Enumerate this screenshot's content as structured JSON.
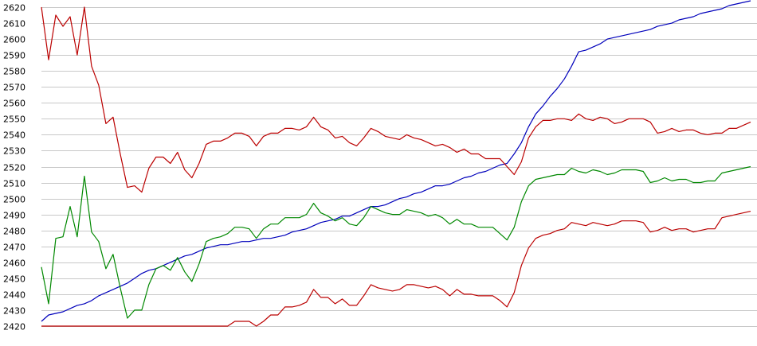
{
  "chart_data": {
    "type": "line",
    "title": "",
    "xlabel": "",
    "ylabel": "",
    "ylim": [
      2420,
      2620
    ],
    "yticks": [
      2620,
      2610,
      2600,
      2590,
      2580,
      2570,
      2560,
      2550,
      2540,
      2530,
      2520,
      2510,
      2500,
      2490,
      2480,
      2470,
      2460,
      2450,
      2440,
      2430,
      2420
    ],
    "grid": true,
    "legend": "none",
    "x": [
      0,
      1,
      2,
      3,
      4,
      5,
      6,
      7,
      8,
      9,
      10,
      11,
      12,
      13,
      14,
      15,
      16,
      17,
      18,
      19,
      20,
      21,
      22,
      23,
      24,
      25,
      26,
      27,
      28,
      29,
      30,
      31,
      32,
      33,
      34,
      35,
      36,
      37,
      38,
      39,
      40,
      41,
      42,
      43,
      44,
      45,
      46,
      47,
      48,
      49,
      50,
      51,
      52,
      53,
      54,
      55,
      56,
      57,
      58,
      59,
      60,
      61,
      62,
      63,
      64,
      65,
      66,
      67,
      68,
      69,
      70,
      71,
      72,
      73,
      74,
      75,
      76,
      77,
      78,
      79,
      80,
      81,
      82,
      83,
      84,
      85,
      86,
      87,
      88,
      89,
      90,
      91,
      92,
      93,
      94,
      95,
      96,
      97,
      98,
      99
    ],
    "series": [
      {
        "color": "#0000bb",
        "values": [
          2423,
          2427,
          2428,
          2429,
          2431,
          2433,
          2434,
          2436,
          2439,
          2441,
          2443,
          2445,
          2447,
          2450,
          2453,
          2455,
          2456,
          2458,
          2460,
          2462,
          2464,
          2465,
          2467,
          2469,
          2470,
          2471,
          2471,
          2472,
          2473,
          2473,
          2474,
          2475,
          2475,
          2476,
          2477,
          2479,
          2480,
          2481,
          2483,
          2485,
          2486,
          2487,
          2489,
          2489,
          2491,
          2493,
          2495,
          2495,
          2496,
          2498,
          2500,
          2501,
          2503,
          2504,
          2506,
          2508,
          2508,
          2509,
          2511,
          2513,
          2514,
          2516,
          2517,
          2519,
          2521,
          2522,
          2528,
          2535,
          2545,
          2553,
          2558,
          2564,
          2569,
          2575,
          2583,
          2592,
          2593,
          2595,
          2597,
          2600,
          2601,
          2602,
          2603,
          2604,
          2605,
          2606,
          2608,
          2609,
          2610,
          2612,
          2613,
          2614,
          2616,
          2617,
          2618,
          2619,
          2621,
          2622,
          2623,
          2624
        ]
      },
      {
        "color": "#bb0000",
        "values": [
          2620,
          2587,
          2615,
          2608,
          2614,
          2590,
          2620,
          2583,
          2571,
          2547,
          2551,
          2528,
          2507,
          2508,
          2504,
          2519,
          2526,
          2526,
          2522,
          2529,
          2518,
          2513,
          2522,
          2534,
          2536,
          2536,
          2538,
          2541,
          2541,
          2539,
          2533,
          2539,
          2541,
          2541,
          2544,
          2544,
          2543,
          2545,
          2551,
          2545,
          2543,
          2538,
          2539,
          2535,
          2533,
          2538,
          2544,
          2542,
          2539,
          2538,
          2537,
          2540,
          2538,
          2537,
          2535,
          2533,
          2534,
          2532,
          2529,
          2531,
          2528,
          2528,
          2525,
          2525,
          2525,
          2520,
          2515,
          2523,
          2538,
          2545,
          2549,
          2549,
          2550,
          2550,
          2549,
          2553,
          2550,
          2549,
          2551,
          2550,
          2547,
          2548,
          2550,
          2550,
          2550,
          2548,
          2541,
          2542,
          2544,
          2542,
          2543,
          2543,
          2541,
          2540,
          2541,
          2541,
          2544,
          2544,
          2546,
          2548
        ]
      },
      {
        "color": "#008800",
        "values": [
          2457,
          2434,
          2475,
          2476,
          2495,
          2476,
          2514,
          2479,
          2473,
          2456,
          2465,
          2444,
          2425,
          2430,
          2430,
          2446,
          2456,
          2458,
          2455,
          2463,
          2454,
          2448,
          2459,
          2473,
          2475,
          2476,
          2478,
          2482,
          2482,
          2481,
          2475,
          2481,
          2484,
          2484,
          2488,
          2488,
          2488,
          2490,
          2497,
          2491,
          2489,
          2486,
          2488,
          2484,
          2483,
          2488,
          2495,
          2493,
          2491,
          2490,
          2490,
          2493,
          2492,
          2491,
          2489,
          2490,
          2488,
          2484,
          2487,
          2484,
          2484,
          2482,
          2482,
          2482,
          2478,
          2474,
          2482,
          2498,
          2508,
          2512,
          2513,
          2514,
          2515,
          2515,
          2519,
          2517,
          2516,
          2518,
          2517,
          2515,
          2516,
          2518,
          2518,
          2518,
          2517,
          2510,
          2511,
          2513,
          2511,
          2512,
          2512,
          2510,
          2510,
          2511,
          2511,
          2516,
          2517,
          2518,
          2519,
          2520
        ]
      },
      {
        "color": "#bb0000",
        "values": [
          2420,
          2420,
          2420,
          2420,
          2420,
          2420,
          2420,
          2420,
          2420,
          2420,
          2420,
          2420,
          2420,
          2420,
          2420,
          2420,
          2420,
          2420,
          2420,
          2420,
          2420,
          2420,
          2420,
          2420,
          2420,
          2420,
          2420,
          2423,
          2423,
          2423,
          2420,
          2423,
          2427,
          2427,
          2432,
          2432,
          2433,
          2435,
          2443,
          2438,
          2438,
          2434,
          2437,
          2433,
          2433,
          2439,
          2446,
          2444,
          2443,
          2442,
          2443,
          2446,
          2446,
          2445,
          2444,
          2445,
          2443,
          2439,
          2443,
          2440,
          2440,
          2439,
          2439,
          2439,
          2436,
          2432,
          2441,
          2458,
          2469,
          2475,
          2477,
          2478,
          2480,
          2481,
          2485,
          2484,
          2483,
          2485,
          2484,
          2483,
          2484,
          2486,
          2486,
          2486,
          2485,
          2479,
          2480,
          2482,
          2480,
          2481,
          2481,
          2479,
          2480,
          2481,
          2481,
          2488,
          2489,
          2490,
          2491,
          2492
        ]
      }
    ]
  }
}
